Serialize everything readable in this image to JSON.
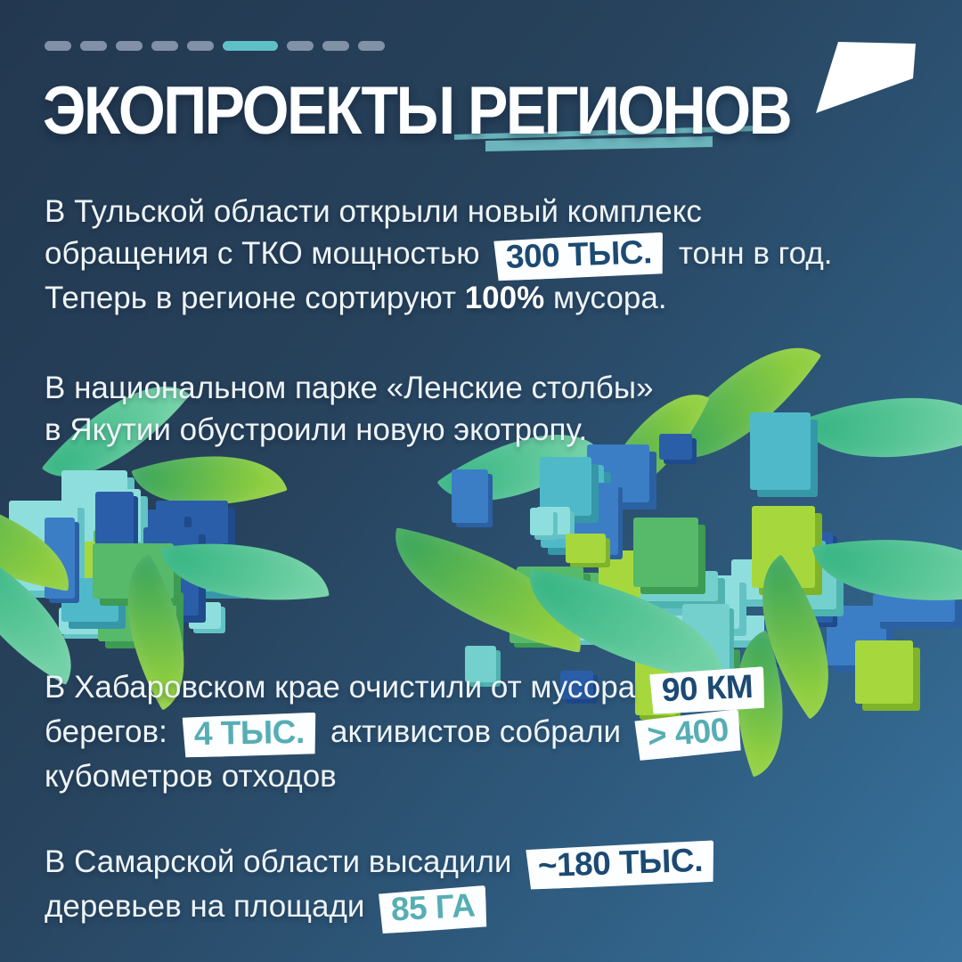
{
  "progress": {
    "total": 9,
    "active_index": 5
  },
  "header": {
    "title": "ЭКОПРОЕКТЫ РЕГИОНОВ",
    "logo": "flag-icon"
  },
  "colors": {
    "background_top_left": "#233850",
    "background_bottom_right": "#38739e",
    "accent_teal": "#5fc0c8",
    "pill_inactive": "#96a3b8",
    "badge_background": "#fcfeff",
    "badge_navy_text": "#1c4a73",
    "badge_teal_text": "#56aeb4",
    "title_underline": "#6cb5bd",
    "body_text": "#eef4f8"
  },
  "paragraphs": [
    {
      "lines": [
        [
          {
            "t": "text",
            "v": "В Тульской области открыли новый комплекс"
          }
        ],
        [
          {
            "t": "text",
            "v": "обращения с ТКО мощностью"
          },
          {
            "t": "badge",
            "c": "navy",
            "v": "300 ТЫС."
          },
          {
            "t": "text",
            "v": "тонн в год."
          }
        ],
        [
          {
            "t": "text",
            "v": "Теперь в регионе сортируют"
          },
          {
            "t": "bold",
            "v": "100%"
          },
          {
            "t": "text",
            "v": "мусора."
          }
        ]
      ]
    },
    {
      "lines": [
        [
          {
            "t": "text",
            "v": "В национальном парке «Ленские столбы»"
          }
        ],
        [
          {
            "t": "text",
            "v": "в Якутии обустроили новую экотропу."
          }
        ]
      ]
    },
    {
      "lines": [
        [
          {
            "t": "text",
            "v": "В Хабаровском крае очистили от мусора"
          },
          {
            "t": "badge",
            "c": "navy",
            "v": "90 КМ"
          }
        ],
        [
          {
            "t": "text",
            "v": "берегов:"
          },
          {
            "t": "badge",
            "c": "teal",
            "v": "4 ТЫС."
          },
          {
            "t": "text",
            "v": "активистов собрали"
          },
          {
            "t": "badge",
            "c": "teal",
            "v": "> 400"
          }
        ],
        [
          {
            "t": "text",
            "v": "кубометров отходов"
          }
        ]
      ]
    },
    {
      "lines": [
        [
          {
            "t": "text",
            "v": "В Самарской области высадили"
          },
          {
            "t": "badge",
            "c": "navy",
            "v": "~180 ТЫС."
          }
        ],
        [
          {
            "t": "text",
            "v": "деревьев на площади"
          },
          {
            "t": "badge",
            "c": "teal",
            "v": "85 ГА"
          }
        ]
      ]
    }
  ]
}
